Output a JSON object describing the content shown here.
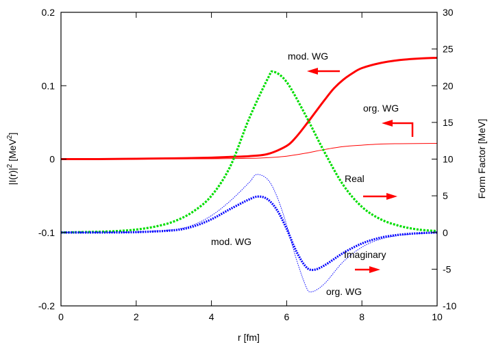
{
  "chart_data": {
    "type": "line",
    "xlabel": "r [fm]",
    "ylabel_left": "|I(r)|",
    "ylabel_left_sup": "2",
    "ylabel_left_unit": "[MeV",
    "ylabel_left_unit_sup": "2",
    "ylabel_left_close": "]",
    "ylabel_right": "Form Factor [MeV]",
    "xlim": [
      0,
      10
    ],
    "ylim_left": [
      -0.2,
      0.2
    ],
    "ylim_right": [
      -10,
      30
    ],
    "xticks": [
      "0",
      "2",
      "4",
      "6",
      "8",
      "10"
    ],
    "xtick_values": [
      0,
      2,
      4,
      6,
      8,
      10
    ],
    "yticks_left": [
      "-0.2",
      "-0.1",
      "0",
      "0.1",
      "0.2"
    ],
    "ytick_left_values": [
      -0.2,
      -0.1,
      0,
      0.1,
      0.2
    ],
    "yticks_right": [
      "-10",
      "-5",
      "0",
      "5",
      "10",
      "15",
      "20",
      "25",
      "30"
    ],
    "ytick_right_values": [
      -10,
      -5,
      0,
      5,
      10,
      15,
      20,
      25,
      30
    ],
    "series": [
      {
        "name": "|I(r)|^2 mod. WG",
        "axis": "left",
        "color": "#ff0000",
        "style": "solid-thick",
        "x": [
          0,
          1,
          2,
          3,
          4,
          4.5,
          5,
          5.5,
          6,
          6.25,
          6.5,
          6.75,
          7,
          7.25,
          7.5,
          7.75,
          8,
          8.5,
          9,
          9.5,
          10
        ],
        "y": [
          0,
          0,
          0.0005,
          0.001,
          0.002,
          0.003,
          0.004,
          0.007,
          0.018,
          0.03,
          0.046,
          0.063,
          0.08,
          0.096,
          0.108,
          0.117,
          0.124,
          0.131,
          0.135,
          0.137,
          0.138
        ]
      },
      {
        "name": "|I(r)|^2 org. WG",
        "axis": "left",
        "color": "#ff0000",
        "style": "solid-thin",
        "x": [
          0,
          2,
          4,
          5,
          5.5,
          6,
          6.5,
          7,
          7.5,
          8,
          8.5,
          9,
          10
        ],
        "y": [
          0,
          0,
          0.0005,
          0.001,
          0.002,
          0.004,
          0.008,
          0.013,
          0.017,
          0.019,
          0.0205,
          0.021,
          0.0215
        ]
      },
      {
        "name": "Real",
        "axis": "right",
        "color": "#00dd00",
        "style": "dashed-thick",
        "x": [
          0,
          0.5,
          1,
          1.5,
          2,
          2.5,
          3,
          3.5,
          4,
          4.5,
          5,
          5.5,
          5.65,
          6,
          6.5,
          7,
          7.5,
          8,
          8.5,
          9,
          9.5,
          10
        ],
        "y": [
          0,
          0.05,
          0.1,
          0.2,
          0.4,
          0.8,
          1.5,
          2.8,
          5.0,
          9.0,
          15.5,
          21.0,
          21.9,
          20.5,
          16,
          11,
          6.5,
          3.5,
          1.8,
          0.9,
          0.4,
          0.2
        ]
      },
      {
        "name": "Imaginary mod. WG",
        "axis": "right",
        "color": "#0000ff",
        "style": "dotted-thick",
        "x": [
          0,
          1,
          2,
          3,
          3.5,
          4,
          4.5,
          5,
          5.25,
          5.5,
          5.75,
          6,
          6.25,
          6.5,
          6.7,
          7,
          7.5,
          8,
          8.5,
          9,
          9.5,
          10
        ],
        "y": [
          0,
          0,
          0.05,
          0.3,
          0.8,
          1.8,
          3.2,
          4.5,
          4.9,
          4.5,
          3.0,
          0.5,
          -2.5,
          -4.6,
          -5.1,
          -4.5,
          -2.8,
          -1.5,
          -0.7,
          -0.3,
          -0.1,
          0
        ]
      },
      {
        "name": "Imaginary org. WG",
        "axis": "right",
        "color": "#0000ff",
        "style": "dotted-thin",
        "x": [
          0,
          1,
          2,
          3,
          3.5,
          4,
          4.5,
          5,
          5.2,
          5.5,
          5.75,
          6,
          6.25,
          6.5,
          6.65,
          7,
          7.5,
          8,
          8.5,
          9,
          9.5,
          10
        ],
        "y": [
          0,
          0,
          0.06,
          0.4,
          1.0,
          2.3,
          4.3,
          6.8,
          7.9,
          7.2,
          4.8,
          1.0,
          -3.5,
          -7.2,
          -8.1,
          -7.0,
          -4.0,
          -2.0,
          -0.9,
          -0.4,
          -0.15,
          0
        ]
      }
    ],
    "annotations": {
      "mod_wg_top": "mod. WG",
      "org_wg_top": "org. WG",
      "real": "Real",
      "mod_wg_bottom": "mod. WG",
      "imaginary": "Imaginary",
      "org_wg_bottom": "org. WG"
    },
    "arrow_color": "#ff0000"
  }
}
